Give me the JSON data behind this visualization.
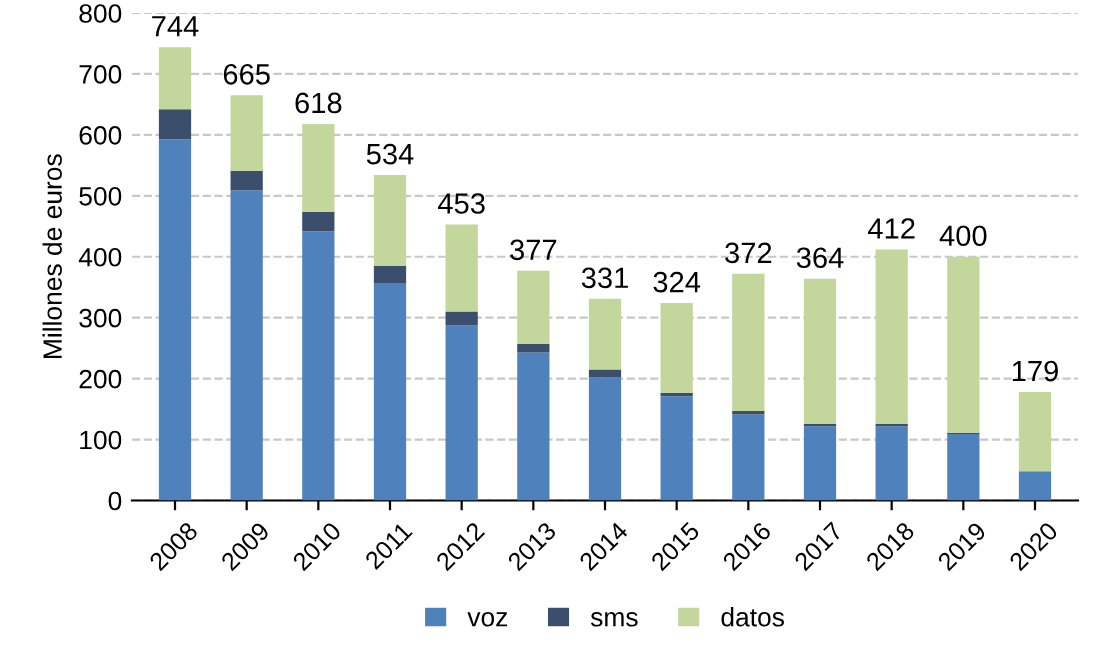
{
  "chart_data": {
    "type": "bar",
    "stacked": true,
    "ylabel": "Millones de euros",
    "categories": [
      "2008",
      "2009",
      "2010",
      "2011",
      "2012",
      "2013",
      "2014",
      "2015",
      "2016",
      "2017",
      "2018",
      "2019",
      "2020"
    ],
    "series": [
      {
        "name": "voz",
        "color": "#4f81bd",
        "values": [
          593,
          509,
          442,
          357,
          287,
          243,
          202,
          171,
          141,
          122,
          122,
          109,
          48
        ]
      },
      {
        "name": "sms",
        "color": "#3b4e6b",
        "values": [
          49,
          32,
          32,
          28,
          23,
          14,
          13,
          6,
          6,
          4,
          4,
          2,
          null
        ]
      },
      {
        "name": "datos",
        "color": "#c3d69b",
        "values": [
          102,
          124,
          144,
          149,
          143,
          120,
          116,
          147,
          225,
          238,
          286,
          289,
          130
        ]
      }
    ],
    "totals": [
      "744",
      "665",
      "618",
      "534",
      "453",
      "377",
      "331",
      "324",
      "372",
      "364",
      "412",
      "400",
      "179"
    ],
    "ylim": [
      0,
      800
    ],
    "yticks": [
      0,
      100,
      200,
      300,
      400,
      500,
      600,
      700,
      800
    ],
    "grid": "y",
    "legend": "bottom"
  }
}
